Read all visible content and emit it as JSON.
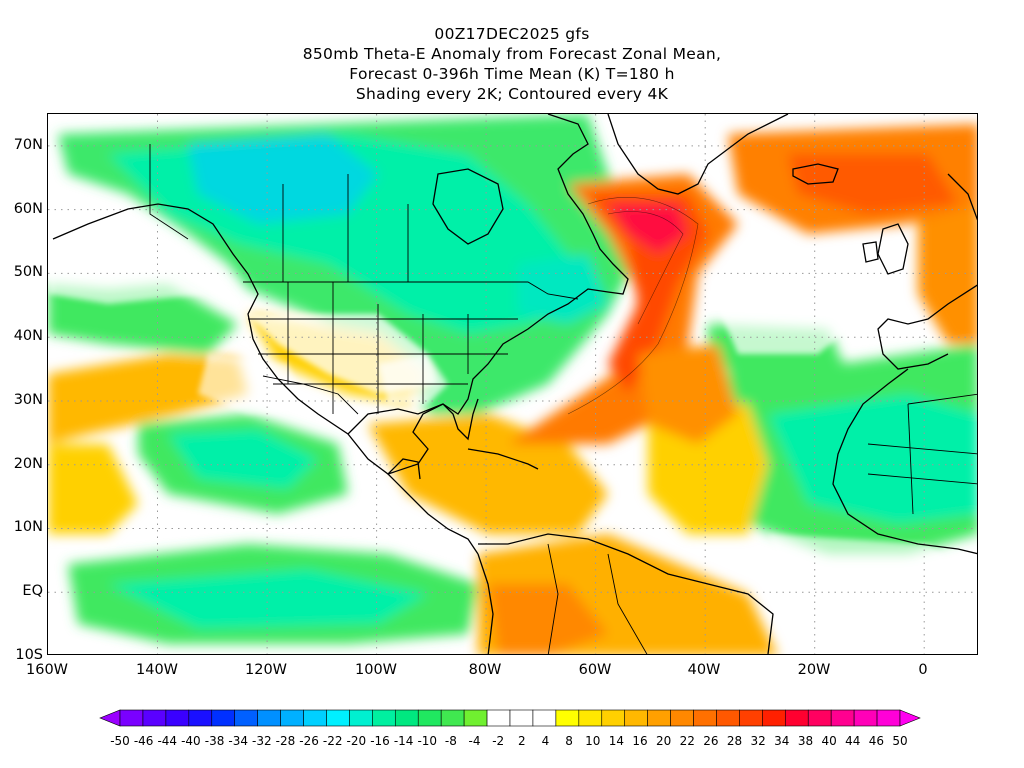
{
  "title": {
    "line1": "00Z17DEC2025 gfs",
    "line2": "850mb Theta-E Anomaly from Forecast Zonal Mean,",
    "line3": "Forecast 0-396h Time Mean (K) T=180 h",
    "line4": "Shading every 2K; Contoured every 4K"
  },
  "map": {
    "projection": "cylindrical equidistant",
    "lon_range": [
      -160,
      10
    ],
    "lat_range": [
      -10,
      75
    ],
    "lat_labels": [
      "70N",
      "60N",
      "50N",
      "40N",
      "30N",
      "20N",
      "10N",
      "EQ",
      "10S"
    ],
    "lon_labels": [
      "160W",
      "140W",
      "120W",
      "100W",
      "80W",
      "60W",
      "40W",
      "20W",
      "0"
    ],
    "gridlines": "dotted",
    "features": [
      "coastlines",
      "country borders",
      "US state borders"
    ],
    "highlight_note": "Max positive anomaly plume over northwest Atlantic / southern Greenland"
  },
  "colorbar": {
    "labels": [
      "-50",
      "-46",
      "-44",
      "-40",
      "-38",
      "-34",
      "-32",
      "-28",
      "-26",
      "-22",
      "-20",
      "-16",
      "-14",
      "-10",
      "-8",
      "-4",
      "-2",
      "2",
      "4",
      "8",
      "10",
      "14",
      "16",
      "20",
      "22",
      "26",
      "28",
      "32",
      "34",
      "38",
      "40",
      "44",
      "46",
      "50"
    ],
    "colors": [
      "#9a00ff",
      "#7a00ff",
      "#5a00ff",
      "#3a00ff",
      "#1a10ff",
      "#0030ff",
      "#0060ff",
      "#0090ff",
      "#00b0ff",
      "#00d0ff",
      "#00f0ff",
      "#00f0d0",
      "#00f0a0",
      "#00e880",
      "#20e860",
      "#40e850",
      "#70f030",
      "#ffffff",
      "#ffffff",
      "#ffffff",
      "#ffff00",
      "#ffe800",
      "#ffd000",
      "#ffb800",
      "#ffa000",
      "#ff8800",
      "#ff7000",
      "#ff5800",
      "#ff4000",
      "#ff2000",
      "#ff0030",
      "#ff0060",
      "#ff0090",
      "#ff00b8",
      "#ff00d8",
      "#ff00f0"
    ]
  }
}
